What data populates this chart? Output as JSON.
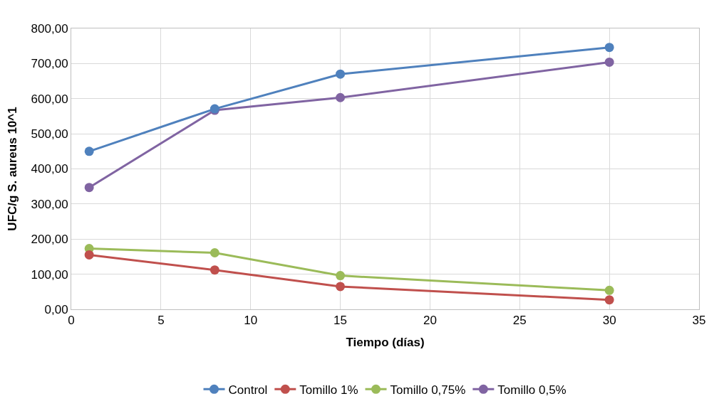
{
  "chart_data": {
    "type": "line",
    "xlabel": "Tiempo (días)",
    "ylabel": "UFC/g S. aureus 10^1",
    "x": [
      1,
      8,
      15,
      30
    ],
    "series": [
      {
        "name": "Control",
        "color": "#4f81bd",
        "values": [
          450,
          571,
          670,
          746
        ]
      },
      {
        "name": "Tomillo 1%",
        "color": "#c0504d",
        "values": [
          155,
          112,
          65,
          27
        ]
      },
      {
        "name": "Tomillo 0,75%",
        "color": "#9bbb59",
        "values": [
          173,
          161,
          96,
          54
        ]
      },
      {
        "name": "Tomillo 0,5%",
        "color": "#8064a2",
        "values": [
          347,
          567,
          603,
          704
        ]
      }
    ],
    "xlim": [
      0,
      35
    ],
    "xticks": [
      0,
      5,
      10,
      15,
      20,
      25,
      30,
      35
    ],
    "ylim": [
      0,
      800
    ],
    "yticks": [
      {
        "value": 0,
        "label": "0,00"
      },
      {
        "value": 100,
        "label": "100,00"
      },
      {
        "value": 200,
        "label": "200,00"
      },
      {
        "value": 300,
        "label": "300,00"
      },
      {
        "value": 400,
        "label": "400,00"
      },
      {
        "value": 500,
        "label": "500,00"
      },
      {
        "value": 600,
        "label": "600,00"
      },
      {
        "value": 700,
        "label": "700,00"
      },
      {
        "value": 800,
        "label": "800,00"
      }
    ],
    "grid": true,
    "legend": "bottom",
    "marker": "circle",
    "line_style": "solid"
  }
}
